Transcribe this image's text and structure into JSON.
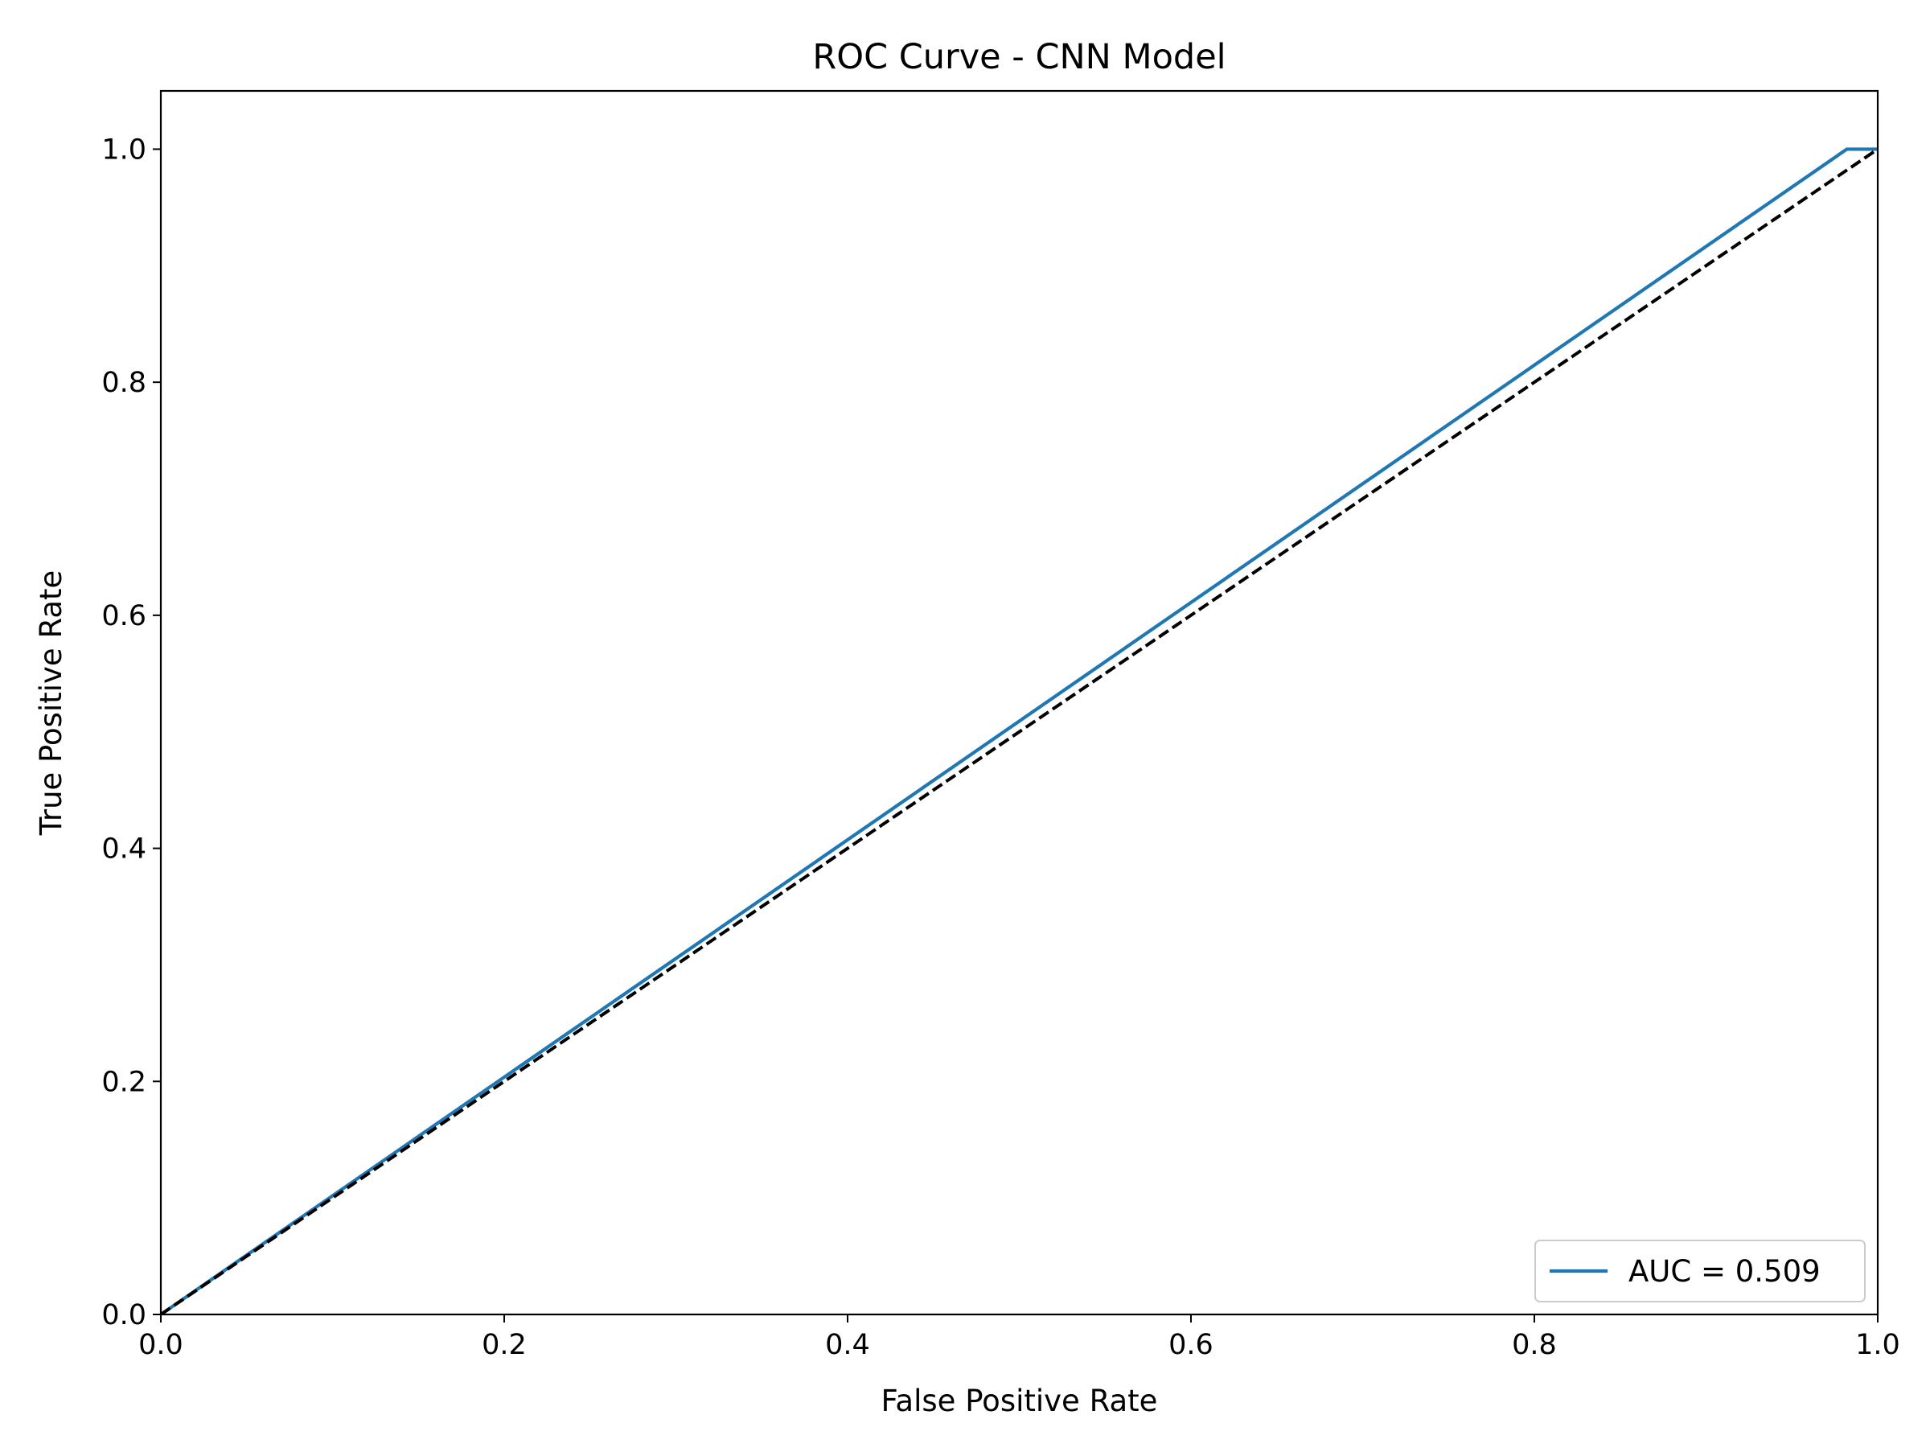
{
  "chart_data": {
    "type": "line",
    "title": "ROC Curve - CNN Model",
    "xlabel": "False Positive Rate",
    "ylabel": "True Positive Rate",
    "xlim": [
      0.0,
      1.0
    ],
    "ylim": [
      0.0,
      1.05
    ],
    "xticks": [
      0.0,
      0.2,
      0.4,
      0.6,
      0.8,
      1.0
    ],
    "yticks": [
      0.0,
      0.2,
      0.4,
      0.6,
      0.8,
      1.0
    ],
    "xtick_labels": [
      "0.0",
      "0.2",
      "0.4",
      "0.6",
      "0.8",
      "1.0"
    ],
    "ytick_labels": [
      "0.0",
      "0.2",
      "0.4",
      "0.6",
      "0.8",
      "1.0"
    ],
    "grid": false,
    "legend_position": "lower right",
    "series": [
      {
        "name": "AUC = 0.509",
        "color": "#1f77b4",
        "style": "solid",
        "x": [
          0.0,
          0.982,
          1.0
        ],
        "y": [
          0.0,
          1.0,
          1.0
        ]
      },
      {
        "color": "#000000",
        "style": "dashed",
        "x": [
          0.0,
          1.0
        ],
        "y": [
          0.0,
          1.0
        ]
      }
    ]
  }
}
